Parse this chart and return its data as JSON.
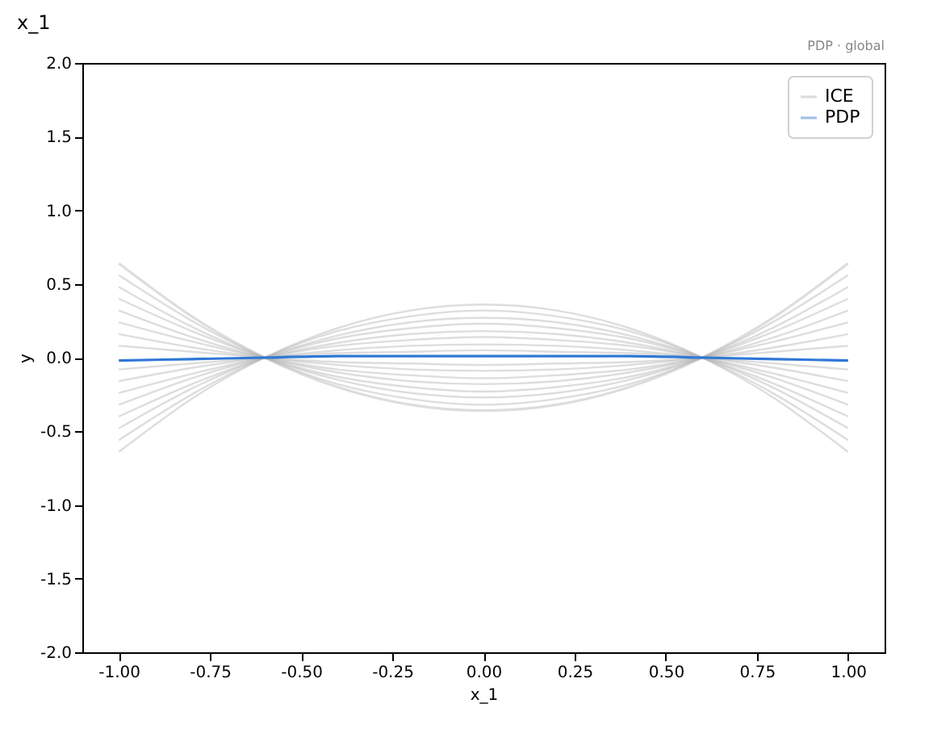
{
  "chart_data": {
    "type": "line",
    "title": "x_1",
    "xlabel": "x_1",
    "ylabel": "y",
    "annotations": [
      "PDP · global"
    ],
    "x": [
      -1,
      -0.8,
      -0.6,
      -0.4,
      -0.2,
      0,
      0.2,
      0.4,
      0.6,
      0.8,
      1
    ],
    "series": [
      {
        "name": "ICE",
        "color": "#b4b4b4",
        "values": [
          0.64,
          0.28,
          0,
          -0.2,
          -0.32,
          -0.36,
          -0.32,
          -0.2,
          0,
          0.28,
          0.64
        ]
      },
      {
        "color": "#b4b4b4",
        "values": [
          0.56,
          0.25,
          0,
          -0.18,
          -0.28,
          -0.32,
          -0.28,
          -0.18,
          0,
          0.25,
          0.56
        ]
      },
      {
        "color": "#b4b4b4",
        "values": [
          0.48,
          0.21,
          0,
          -0.15,
          -0.24,
          -0.27,
          -0.24,
          -0.15,
          0,
          0.21,
          0.48
        ]
      },
      {
        "color": "#b4b4b4",
        "values": [
          0.4,
          0.18,
          0,
          -0.13,
          -0.2,
          -0.23,
          -0.2,
          -0.13,
          0,
          0.18,
          0.4
        ]
      },
      {
        "color": "#b4b4b4",
        "values": [
          0.32,
          0.14,
          0,
          -0.1,
          -0.16,
          -0.18,
          -0.16,
          -0.1,
          0,
          0.14,
          0.32
        ]
      },
      {
        "color": "#b4b4b4",
        "values": [
          0.24,
          0.11,
          0,
          -0.08,
          -0.12,
          -0.14,
          -0.12,
          -0.08,
          0,
          0.11,
          0.24
        ]
      },
      {
        "color": "#b4b4b4",
        "values": [
          0.16,
          0.07,
          0,
          -0.05,
          -0.08,
          -0.09,
          -0.08,
          -0.05,
          0,
          0.07,
          0.16
        ]
      },
      {
        "color": "#b4b4b4",
        "values": [
          0.08,
          0.04,
          0,
          -0.03,
          -0.04,
          -0.05,
          -0.04,
          -0.03,
          0,
          0.04,
          0.08
        ]
      },
      {
        "color": "#b4b4b4",
        "values": [
          -0.08,
          -0.04,
          0,
          0.03,
          0.04,
          0.05,
          0.04,
          0.03,
          0,
          -0.04,
          -0.08
        ]
      },
      {
        "color": "#b4b4b4",
        "values": [
          -0.16,
          -0.07,
          0,
          0.05,
          0.08,
          0.09,
          0.08,
          0.05,
          0,
          -0.07,
          -0.16
        ]
      },
      {
        "color": "#b4b4b4",
        "values": [
          -0.24,
          -0.11,
          0,
          0.08,
          0.12,
          0.14,
          0.12,
          0.08,
          0,
          -0.11,
          -0.24
        ]
      },
      {
        "color": "#b4b4b4",
        "values": [
          -0.32,
          -0.14,
          0,
          0.1,
          0.16,
          0.18,
          0.16,
          0.1,
          0,
          -0.14,
          -0.32
        ]
      },
      {
        "color": "#b4b4b4",
        "values": [
          -0.4,
          -0.18,
          0,
          0.13,
          0.2,
          0.23,
          0.2,
          0.13,
          0,
          -0.18,
          -0.4
        ]
      },
      {
        "color": "#b4b4b4",
        "values": [
          -0.48,
          -0.21,
          0,
          0.15,
          0.24,
          0.27,
          0.24,
          0.15,
          0,
          -0.21,
          -0.48
        ]
      },
      {
        "color": "#b4b4b4",
        "values": [
          -0.56,
          -0.25,
          0,
          0.18,
          0.28,
          0.32,
          0.28,
          0.18,
          0,
          -0.25,
          -0.56
        ]
      },
      {
        "color": "#b4b4b4",
        "values": [
          -0.64,
          -0.28,
          0,
          0.2,
          0.32,
          0.36,
          0.32,
          0.2,
          0,
          -0.28,
          -0.64
        ]
      },
      {
        "name": "PDP",
        "color": "#2f78d6",
        "values": [
          -0.02,
          -0.01,
          0,
          0.01,
          0.01,
          0.01,
          0.01,
          0.01,
          0,
          -0.01,
          -0.02
        ]
      }
    ],
    "xlim": [
      -1.1,
      1.1
    ],
    "xticks": [
      {
        "value": -1,
        "label": "-1.00"
      },
      {
        "value": -0.75,
        "label": "-0.75"
      },
      {
        "value": -0.5,
        "label": "-0.50"
      },
      {
        "value": -0.25,
        "label": "-0.25"
      },
      {
        "value": 0,
        "label": "0.00"
      },
      {
        "value": 0.25,
        "label": "0.25"
      },
      {
        "value": 0.5,
        "label": "0.50"
      },
      {
        "value": 0.75,
        "label": "0.75"
      },
      {
        "value": 1,
        "label": "1.00"
      }
    ],
    "ylim": [
      -2,
      2
    ],
    "yticks": [
      {
        "value": -2,
        "label": "-2.0"
      },
      {
        "value": -1.5,
        "label": "-1.5"
      },
      {
        "value": -1,
        "label": "-1.0"
      },
      {
        "value": -0.5,
        "label": "-0.5"
      },
      {
        "value": 0,
        "label": "0.0"
      },
      {
        "value": 0.5,
        "label": "0.5"
      },
      {
        "value": 1,
        "label": "1.0"
      },
      {
        "value": 1.5,
        "label": "1.5"
      },
      {
        "value": 2,
        "label": "2.0"
      }
    ],
    "grid": false,
    "legend": "top right",
    "marker": "none",
    "line_style": "solid"
  }
}
